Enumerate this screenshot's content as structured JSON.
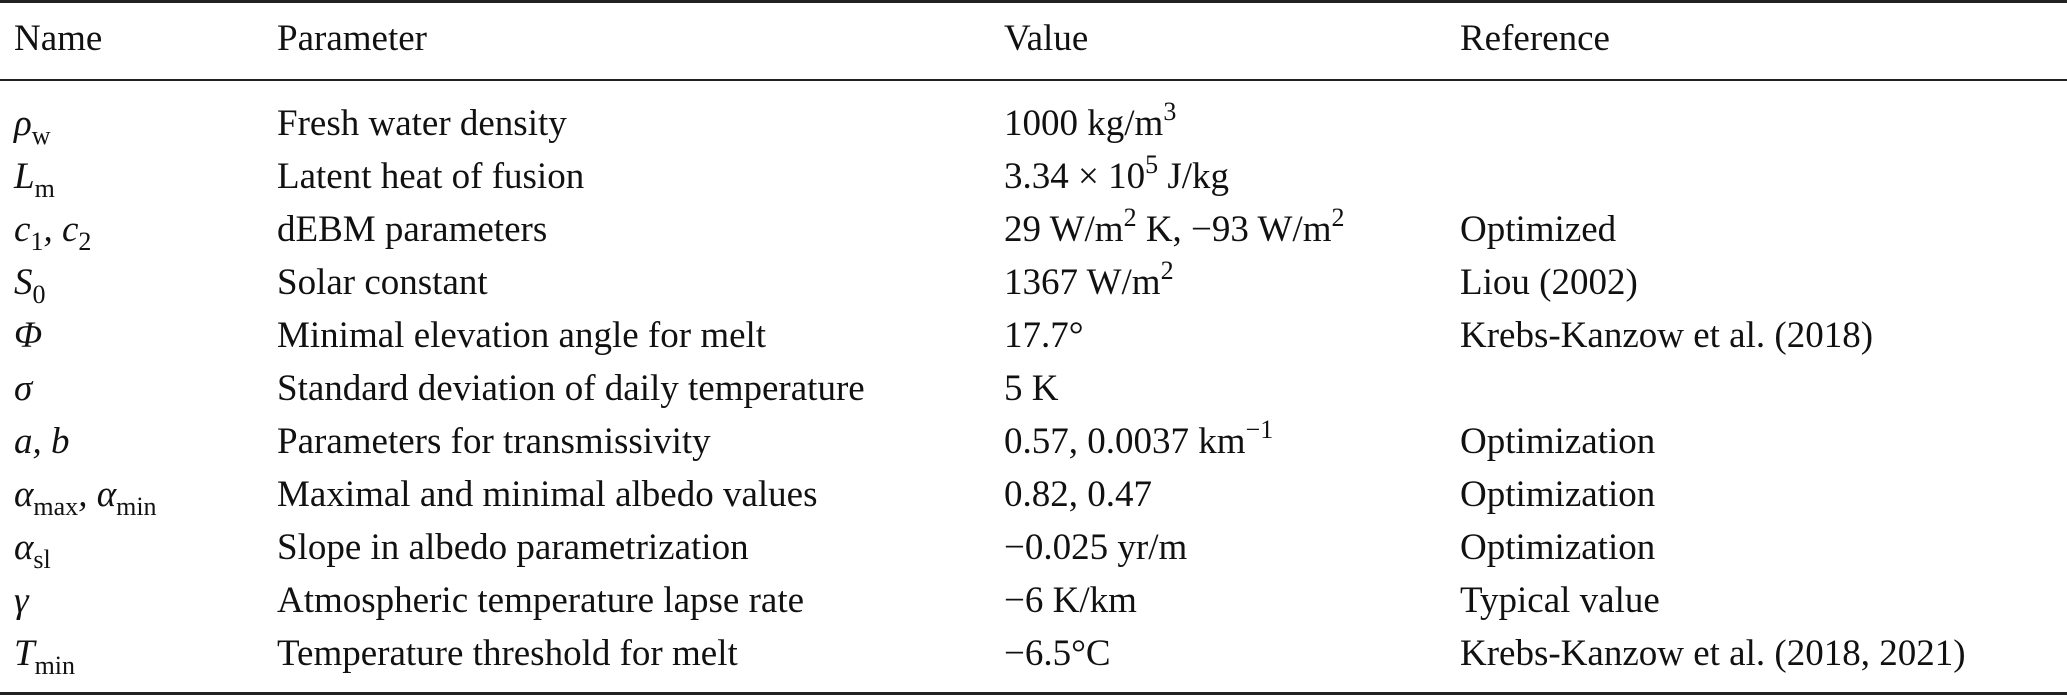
{
  "table": {
    "headers": [
      "Name",
      "Parameter",
      "Value",
      "Reference"
    ],
    "rows": [
      {
        "name": "ρ",
        "name_sub": "w",
        "parameter": "Fresh water density",
        "value": "1000 kg/m",
        "value_sup": "3",
        "value_tail": "",
        "reference": ""
      },
      {
        "name": "L",
        "name_sub": "m",
        "parameter": "Latent heat of fusion",
        "value": "3.34 × 10",
        "value_sup": "5",
        "value_tail": " J/kg",
        "reference": ""
      },
      {
        "name": "c",
        "name_sub": "1",
        "name_extra": ", c",
        "name_sub2": "2",
        "parameter": "dEBM parameters",
        "value": "29 W/m",
        "value_sup": "2",
        "value_tail": " K, −93 W/m",
        "value_sup2": "2",
        "reference": "Optimized"
      },
      {
        "name": "S",
        "name_sub": "0",
        "parameter": "Solar constant",
        "value": "1367 W/m",
        "value_sup": "2",
        "value_tail": "",
        "reference": "Liou (2002)"
      },
      {
        "name": "Φ",
        "name_sub": "",
        "parameter": "Minimal elevation angle for melt",
        "value": "17.7°",
        "value_sup": "",
        "value_tail": "",
        "reference": "Krebs-Kanzow et al. (2018)"
      },
      {
        "name": "σ",
        "name_sub": "",
        "parameter": "Standard deviation of daily temperature",
        "value": "5 K",
        "value_sup": "",
        "value_tail": "",
        "reference": ""
      },
      {
        "name": "a, b",
        "name_sub": "",
        "parameter": "Parameters for transmissivity",
        "value": "0.57, 0.0037 km",
        "value_sup": "−1",
        "value_tail": "",
        "reference": "Optimization"
      },
      {
        "name": "α",
        "name_sub": "max",
        "name_extra": ", α",
        "name_sub2": "min",
        "parameter": "Maximal and minimal albedo values",
        "value": "0.82, 0.47",
        "value_sup": "",
        "value_tail": "",
        "reference": "Optimization"
      },
      {
        "name": "α",
        "name_sub": "sl",
        "parameter": "Slope in albedo parametrization",
        "value": "−0.025 yr/m",
        "value_sup": "",
        "value_tail": "",
        "reference": "Optimization"
      },
      {
        "name": "γ",
        "name_sub": "",
        "parameter": "Atmospheric temperature lapse rate",
        "value": "−6 K/km",
        "value_sup": "",
        "value_tail": "",
        "reference": "Typical value"
      },
      {
        "name": "T",
        "name_sub": "min",
        "parameter": "Temperature threshold for melt",
        "value": "−6.5°C",
        "value_sup": "",
        "value_tail": "",
        "reference": "Krebs-Kanzow et al. (2018, 2021)"
      }
    ]
  }
}
